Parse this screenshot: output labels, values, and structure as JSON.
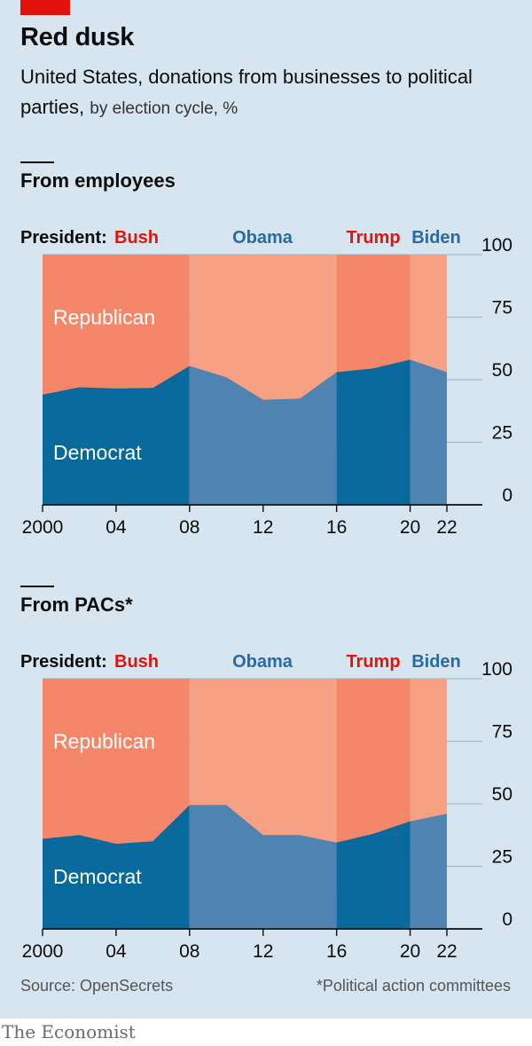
{
  "header": {
    "title": "Red dusk",
    "subtitle_main": "United States, donations from businesses to political parties,",
    "subtitle_unit": "by election cycle, %"
  },
  "footer": {
    "source": "Source: OpenSecrets",
    "note": "*Political action committees",
    "brand": "The Economist"
  },
  "colors": {
    "background": "#d6e5ef",
    "republican_dark": "#f4876a",
    "republican_light": "#f6a183",
    "democrat_dark": "#07699c",
    "democrat_light": "#4e83b2",
    "accent_red": "#e3120b",
    "obama_blue": "#2a6aa0"
  },
  "president_prefix": "President:",
  "presidents": [
    {
      "name": "Bush",
      "start": 2000,
      "end": 2008,
      "shade": "dark",
      "label_color": "#e3120b"
    },
    {
      "name": "Obama",
      "start": 2008,
      "end": 2016,
      "shade": "light",
      "label_color": "#2a6aa0"
    },
    {
      "name": "Trump",
      "start": 2016,
      "end": 2020,
      "shade": "dark",
      "label_color": "#e3120b"
    },
    {
      "name": "Biden",
      "start": 2020,
      "end": 2022,
      "shade": "light",
      "label_color": "#2a6aa0"
    }
  ],
  "chart_data": [
    {
      "type": "area",
      "title": "From employees",
      "x": [
        2000,
        2002,
        2004,
        2006,
        2008,
        2010,
        2012,
        2014,
        2016,
        2018,
        2020,
        2022
      ],
      "x_tick_values": [
        2000,
        2004,
        2008,
        2012,
        2016,
        2020,
        2022
      ],
      "x_tick_labels": [
        "2000",
        "04",
        "08",
        "12",
        "16",
        "20",
        "22"
      ],
      "y_ticks": [
        0,
        25,
        50,
        75,
        100
      ],
      "ylim": [
        0,
        100
      ],
      "stacked_series": [
        {
          "name": "Democrat",
          "values": [
            44,
            47,
            46.5,
            46.7,
            55.5,
            51,
            42,
            42.5,
            53,
            54.5,
            58,
            53
          ]
        },
        {
          "name": "Republican",
          "values": [
            56,
            53,
            53.5,
            53.3,
            44.5,
            49,
            58,
            57.5,
            47,
            45.5,
            42,
            47
          ]
        }
      ]
    },
    {
      "type": "area",
      "title": "From PACs*",
      "x": [
        2000,
        2002,
        2004,
        2006,
        2008,
        2010,
        2012,
        2014,
        2016,
        2018,
        2020,
        2022
      ],
      "x_tick_values": [
        2000,
        2004,
        2008,
        2012,
        2016,
        2020,
        2022
      ],
      "x_tick_labels": [
        "2000",
        "04",
        "08",
        "12",
        "16",
        "20",
        "22"
      ],
      "y_ticks": [
        0,
        25,
        50,
        75,
        100
      ],
      "ylim": [
        0,
        100
      ],
      "stacked_series": [
        {
          "name": "Democrat",
          "values": [
            36,
            37.5,
            34,
            35,
            49.5,
            49.5,
            37.5,
            37.5,
            34.5,
            38,
            43,
            46
          ]
        },
        {
          "name": "Republican",
          "values": [
            64,
            62.5,
            66,
            65,
            50.5,
            50.5,
            62.5,
            62.5,
            65.5,
            62,
            57,
            54
          ]
        }
      ]
    }
  ]
}
